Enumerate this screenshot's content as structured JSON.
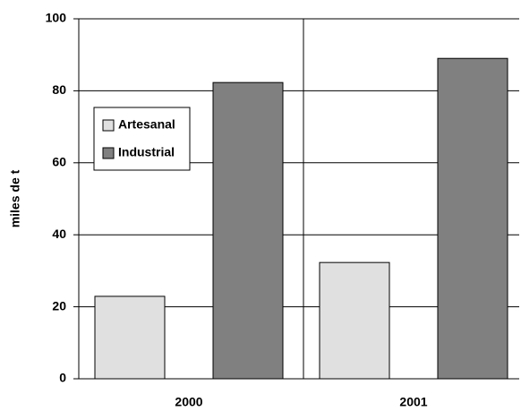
{
  "chart_data": {
    "type": "bar",
    "y_label": "miles de t",
    "categories": [
      "2000",
      "2001"
    ],
    "series": [
      {
        "name": "Artesanal",
        "color": "#e0e0e0",
        "values": [
          22.9,
          32.3
        ]
      },
      {
        "name": "Industrial",
        "color": "#808080",
        "values": [
          82.3,
          89
        ]
      }
    ],
    "ylim": [
      0,
      100
    ],
    "yticks": [
      0,
      20,
      40,
      60,
      80,
      100
    ],
    "grid": true,
    "legend": "upper left"
  }
}
